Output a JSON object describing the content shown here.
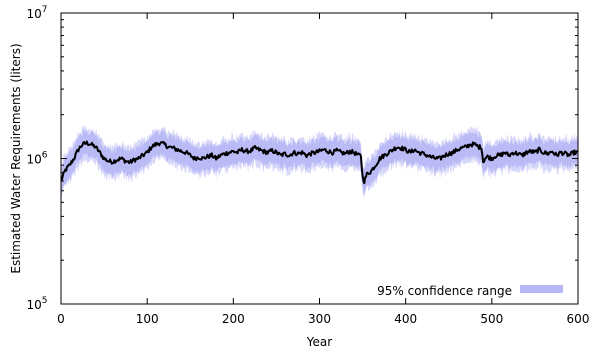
{
  "chart_data": {
    "type": "line",
    "title": "",
    "xlabel": "Year",
    "ylabel": "Estimated Water Requirements (liters)",
    "xlim": [
      0,
      600
    ],
    "ylim": [
      100000,
      10000000
    ],
    "yscale": "log",
    "grid": false,
    "legend_position": "bottom-right",
    "x_ticks": [
      {
        "value": 0,
        "label": "0"
      },
      {
        "value": 100,
        "label": "100"
      },
      {
        "value": 200,
        "label": "200"
      },
      {
        "value": 300,
        "label": "300"
      },
      {
        "value": 400,
        "label": "400"
      },
      {
        "value": 500,
        "label": "500"
      },
      {
        "value": 600,
        "label": "600"
      }
    ],
    "y_ticks": [
      {
        "value": 100000,
        "base": "10",
        "exp": "5"
      },
      {
        "value": 1000000,
        "base": "10",
        "exp": "6"
      },
      {
        "value": 10000000,
        "base": "10",
        "exp": "7"
      }
    ],
    "series": [
      {
        "name": "",
        "style": "line",
        "color": "#000000",
        "x": [
          0,
          5,
          10,
          15,
          20,
          25,
          30,
          35,
          40,
          45,
          50,
          55,
          60,
          65,
          70,
          75,
          80,
          85,
          90,
          95,
          100,
          105,
          110,
          115,
          120,
          125,
          130,
          135,
          140,
          145,
          150,
          155,
          160,
          165,
          170,
          175,
          180,
          185,
          190,
          195,
          200,
          205,
          210,
          215,
          220,
          225,
          230,
          235,
          240,
          245,
          250,
          255,
          260,
          265,
          270,
          275,
          280,
          285,
          290,
          295,
          300,
          305,
          310,
          315,
          320,
          325,
          330,
          335,
          340,
          345,
          348,
          350,
          352,
          355,
          360,
          365,
          370,
          375,
          380,
          385,
          390,
          395,
          400,
          405,
          410,
          415,
          420,
          425,
          430,
          435,
          440,
          445,
          450,
          455,
          460,
          465,
          470,
          475,
          480,
          485,
          488,
          490,
          492,
          495,
          500,
          505,
          510,
          515,
          520,
          525,
          530,
          535,
          540,
          545,
          550,
          555,
          560,
          565,
          570,
          575,
          580,
          585,
          590,
          595,
          600
        ],
        "y": [
          700000,
          830000,
          900000,
          1000000,
          1150000,
          1250000,
          1280000,
          1250000,
          1200000,
          1100000,
          1000000,
          960000,
          950000,
          980000,
          1000000,
          960000,
          940000,
          980000,
          1000000,
          1050000,
          1100000,
          1200000,
          1250000,
          1280000,
          1250000,
          1200000,
          1180000,
          1150000,
          1120000,
          1100000,
          1050000,
          1000000,
          1020000,
          1000000,
          1030000,
          1050000,
          1000000,
          1050000,
          1080000,
          1100000,
          1120000,
          1100000,
          1150000,
          1120000,
          1130000,
          1180000,
          1150000,
          1120000,
          1100000,
          1130000,
          1100000,
          1050000,
          1080000,
          1050000,
          1100000,
          1080000,
          1100000,
          1050000,
          1080000,
          1100000,
          1120000,
          1150000,
          1120000,
          1100000,
          1130000,
          1100000,
          1080000,
          1120000,
          1100000,
          1050000,
          1050000,
          750000,
          700000,
          780000,
          820000,
          900000,
          1000000,
          1050000,
          1100000,
          1150000,
          1200000,
          1180000,
          1150000,
          1100000,
          1150000,
          1100000,
          1080000,
          1050000,
          1020000,
          1000000,
          1000000,
          1050000,
          1080000,
          1100000,
          1150000,
          1180000,
          1200000,
          1250000,
          1250000,
          1200000,
          1200000,
          950000,
          1000000,
          1030000,
          1000000,
          1050000,
          1050000,
          1100000,
          1050000,
          1100000,
          1080000,
          1050000,
          1100000,
          1120000,
          1100000,
          1150000,
          1100000,
          1080000,
          1120000,
          1050000,
          1100000,
          1080000,
          1050000,
          1100000,
          1100000
        ]
      },
      {
        "name": "95% confidence range",
        "style": "band",
        "color": "#b7b7f5",
        "lower_factor": 0.82,
        "upper_factor": 1.2
      }
    ]
  }
}
